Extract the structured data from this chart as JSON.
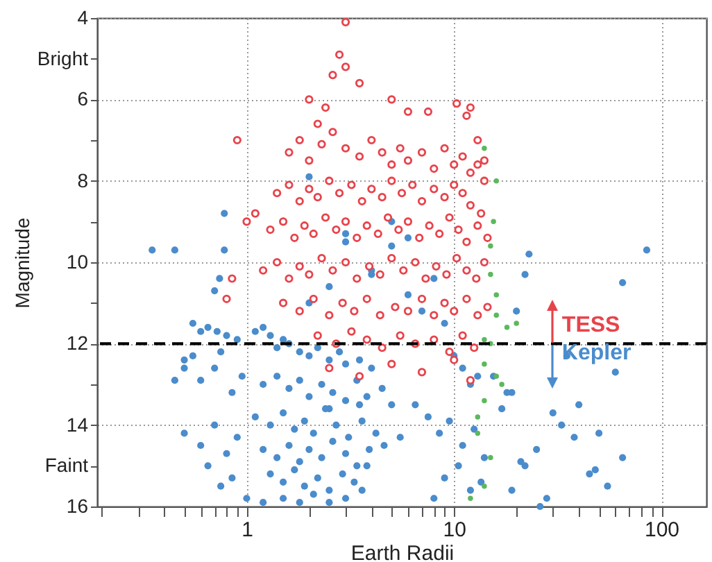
{
  "chart_data": {
    "type": "scatter",
    "xlabel": "Earth Radii",
    "ylabel": "Magnitude",
    "log": "x",
    "grid": true,
    "legend": "right",
    "marker": "circle",
    "xlim": [
      0.19,
      165
    ],
    "ylim": [
      16,
      4
    ],
    "xticks": [
      {
        "value": 0.2,
        "label": null
      },
      {
        "value": 0.3,
        "label": null
      },
      {
        "value": 0.4,
        "label": null
      },
      {
        "value": 0.5,
        "label": null
      },
      {
        "value": 0.6,
        "label": null
      },
      {
        "value": 0.7,
        "label": null
      },
      {
        "value": 0.8,
        "label": null
      },
      {
        "value": 0.9,
        "label": null
      },
      1,
      {
        "value": 2,
        "label": null
      },
      {
        "value": 3,
        "label": null
      },
      {
        "value": 4,
        "label": null
      },
      {
        "value": 5,
        "label": null
      },
      {
        "value": 6,
        "label": null
      },
      {
        "value": 7,
        "label": null
      },
      {
        "value": 8,
        "label": null
      },
      {
        "value": 9,
        "label": null
      },
      10,
      {
        "value": 20,
        "label": null
      },
      {
        "value": 30,
        "label": null
      },
      {
        "value": 40,
        "label": null
      },
      {
        "value": 50,
        "label": null
      },
      {
        "value": 60,
        "label": null
      },
      {
        "value": 70,
        "label": null
      },
      {
        "value": 80,
        "label": null
      },
      {
        "value": 90,
        "label": null
      },
      100
    ],
    "yticks": [
      4,
      {
        "value": 5,
        "label": "Bright"
      },
      6,
      {
        "value": 7,
        "label": null
      },
      8,
      {
        "value": 9,
        "label": null
      },
      10,
      {
        "value": 11,
        "label": null
      },
      12,
      {
        "value": 13,
        "label": null
      },
      14,
      {
        "value": 15,
        "label": "Faint"
      },
      16
    ],
    "ref_lines": [
      {
        "axis": "y",
        "value": 12,
        "line_style": "dashed",
        "color": "#000000"
      }
    ],
    "series": [
      {
        "name": "Kepler",
        "color": "#4a8ccc",
        "x": [
          0.35,
          0.45,
          0.78,
          0.78,
          0.7,
          0.74,
          0.55,
          0.6,
          0.65,
          0.72,
          0.8,
          0.9,
          0.5,
          0.45,
          0.5,
          0.55,
          0.6,
          0.7,
          0.75,
          0.85,
          0.95,
          0.5,
          0.6,
          0.7,
          0.8,
          0.9,
          0.65,
          0.75,
          0.85,
          1.0,
          1.1,
          1.2,
          1.3,
          1.4,
          1.5,
          1.6,
          1.8,
          2.0,
          2.2,
          2.5,
          2.8,
          3.0,
          3.5,
          4.0,
          1.2,
          1.4,
          1.6,
          1.8,
          2.0,
          2.3,
          2.6,
          3.0,
          3.4,
          3.8,
          4.5,
          5.0,
          1.1,
          1.3,
          1.5,
          1.7,
          1.9,
          2.1,
          2.4,
          2.7,
          3.1,
          3.6,
          4.2,
          1.2,
          1.4,
          1.6,
          1.8,
          2.0,
          2.3,
          2.6,
          3.0,
          3.4,
          3.9,
          4.6,
          5.5,
          1.3,
          1.5,
          1.7,
          1.9,
          2.2,
          2.5,
          2.9,
          3.3,
          3.8,
          1.2,
          1.5,
          1.8,
          2.1,
          2.5,
          3.0,
          3.6,
          2.0,
          2.5,
          3.0,
          4.0,
          5.0,
          6.0,
          7.0,
          8.0,
          9.0,
          10.0,
          11.0,
          12.0,
          13.0,
          8.5,
          9.5,
          11.0,
          12.5,
          14.0,
          9.0,
          10.5,
          12.0,
          8.0,
          13.5,
          6.5,
          7.5,
          15.5,
          17.0,
          19.0,
          2.0,
          3.0,
          4.0,
          5.0,
          6.0,
          2.5,
          3.5,
          23,
          22,
          85,
          65,
          20,
          35,
          60,
          40,
          30,
          50,
          55,
          65,
          25,
          45,
          22,
          28,
          33,
          19,
          21,
          26,
          38,
          48,
          18
        ],
        "values": [
          9.7,
          9.7,
          9.7,
          8.8,
          10.7,
          10.4,
          11.5,
          11.7,
          11.6,
          11.7,
          11.8,
          11.9,
          12.4,
          12.9,
          12.6,
          12.3,
          12.9,
          12.6,
          12.2,
          13.2,
          12.8,
          14.2,
          14.5,
          14.0,
          14.7,
          14.3,
          15.0,
          15.5,
          15.3,
          15.8,
          11.7,
          11.6,
          11.8,
          12.1,
          11.9,
          12.0,
          12.2,
          12.3,
          12.1,
          12.4,
          12.2,
          12.5,
          12.4,
          12.6,
          13.0,
          12.8,
          13.1,
          12.9,
          13.3,
          13.0,
          13.2,
          13.4,
          12.9,
          13.3,
          13.1,
          13.5,
          13.8,
          14.0,
          13.7,
          14.1,
          13.9,
          14.2,
          13.6,
          14.0,
          14.3,
          13.9,
          14.2,
          14.6,
          14.8,
          14.5,
          14.9,
          14.6,
          14.8,
          14.4,
          14.7,
          15.0,
          14.6,
          14.5,
          14.3,
          15.2,
          15.4,
          15.1,
          15.5,
          15.3,
          15.6,
          15.2,
          15.4,
          15.0,
          15.9,
          15.8,
          15.9,
          15.7,
          15.9,
          15.8,
          15.6,
          11.0,
          10.6,
          9.5,
          10.2,
          9.6,
          10.8,
          11.2,
          10.4,
          11.5,
          12.3,
          12.6,
          13.0,
          12.8,
          14.2,
          13.9,
          14.5,
          14.1,
          14.8,
          15.3,
          15.0,
          15.6,
          15.8,
          15.4,
          13.5,
          13.8,
          12.8,
          13.6,
          13.2,
          7.9,
          9.3,
          10.3,
          9.0,
          9.4,
          13.6,
          13.5,
          9.8,
          10.3,
          9.7,
          10.5,
          11.2,
          12.3,
          12.7,
          13.5,
          13.7,
          14.2,
          15.5,
          14.8,
          14.6,
          15.2,
          15.0,
          15.8,
          14.0,
          15.6,
          14.9,
          16.0,
          14.3,
          15.1,
          13.2
        ]
      },
      {
        "color": "#5cb85c",
        "x": [
          14,
          16,
          15,
          16,
          18,
          20,
          15,
          14,
          16,
          14,
          13,
          15,
          14,
          12,
          17,
          15.5,
          15,
          16,
          14,
          13
        ],
        "values": [
          7.2,
          8.0,
          10.3,
          11.3,
          11.6,
          11.5,
          12.0,
          12.5,
          12.8,
          13.4,
          14.2,
          14.8,
          15.5,
          15.8,
          13.0,
          9.0,
          9.6,
          10.8,
          11.9,
          13.8
        ]
      },
      {
        "name": "TESS",
        "color": "#e8434b",
        "x": [
          3.0,
          2.8,
          3.0,
          3.5,
          2.6,
          0.9,
          1.1,
          0.85,
          0.8,
          1.0,
          12,
          10.3,
          11.5,
          13,
          14,
          5.0,
          6.0,
          7.5,
          2.0,
          2.2,
          2.4,
          1.6,
          1.8,
          2.0,
          2.3,
          2.6,
          3.0,
          3.5,
          4.0,
          4.5,
          5.0,
          5.5,
          6.0,
          7.0,
          8.0,
          9.0,
          10.0,
          11.0,
          12.0,
          13.0,
          14.0,
          1.4,
          1.6,
          1.8,
          2.0,
          2.2,
          2.5,
          2.8,
          3.2,
          3.6,
          4.0,
          4.5,
          5.0,
          5.6,
          6.3,
          7.0,
          8.0,
          9.0,
          10.0,
          11.0,
          12.0,
          13.5,
          1.3,
          1.5,
          1.7,
          1.9,
          2.1,
          2.4,
          2.7,
          3.0,
          3.4,
          3.8,
          4.3,
          4.8,
          5.4,
          6.0,
          6.8,
          7.6,
          8.5,
          9.5,
          10.5,
          11.5,
          13.0,
          14.5,
          1.2,
          1.4,
          1.6,
          1.8,
          2.0,
          2.3,
          2.6,
          3.0,
          3.4,
          3.9,
          4.4,
          5.0,
          5.7,
          6.5,
          7.3,
          8.2,
          9.2,
          10.3,
          11.5,
          12.8,
          14.0,
          1.5,
          1.8,
          2.1,
          2.5,
          2.9,
          3.3,
          3.8,
          4.4,
          5.2,
          6.0,
          7.0,
          8.0,
          9.0,
          10.0,
          11.5,
          13.0,
          14.5,
          2.2,
          2.7,
          3.2,
          3.8,
          4.5,
          5.5,
          6.5,
          8.0,
          9.5,
          11.0,
          12.5,
          2.5,
          3.5,
          5.0,
          7.0,
          10.0,
          12.0
        ],
        "values": [
          4.1,
          4.9,
          5.2,
          5.6,
          5.4,
          7.0,
          8.8,
          10.4,
          10.9,
          9.0,
          6.2,
          6.1,
          6.4,
          7.0,
          7.5,
          6.0,
          6.3,
          6.3,
          6.0,
          6.6,
          6.2,
          7.3,
          7.0,
          7.5,
          7.1,
          6.8,
          7.2,
          7.4,
          7.0,
          7.3,
          7.6,
          7.2,
          7.5,
          7.3,
          7.7,
          7.2,
          7.6,
          7.4,
          7.8,
          7.6,
          8.0,
          8.3,
          8.1,
          8.5,
          8.2,
          8.4,
          8.0,
          8.3,
          8.1,
          8.5,
          8.2,
          8.4,
          8.0,
          8.3,
          8.1,
          8.5,
          8.2,
          8.4,
          8.1,
          8.3,
          8.6,
          8.8,
          9.2,
          9.0,
          9.4,
          9.1,
          9.3,
          8.9,
          9.2,
          9.0,
          9.4,
          9.1,
          9.3,
          8.9,
          9.2,
          9.0,
          9.4,
          9.1,
          9.3,
          8.9,
          9.2,
          9.5,
          9.1,
          9.4,
          10.2,
          10.0,
          10.4,
          10.1,
          10.3,
          9.9,
          10.2,
          10.0,
          10.4,
          10.1,
          10.3,
          9.9,
          10.2,
          10.0,
          10.4,
          10.1,
          10.3,
          9.9,
          10.2,
          10.4,
          10.0,
          11.0,
          11.2,
          10.9,
          11.3,
          11.0,
          11.2,
          10.9,
          11.3,
          11.1,
          11.2,
          10.9,
          11.3,
          11.0,
          11.2,
          10.9,
          11.3,
          11.1,
          11.8,
          12.0,
          11.7,
          11.9,
          12.1,
          11.8,
          12.0,
          11.9,
          12.2,
          11.8,
          12.1,
          12.6,
          12.8,
          12.5,
          12.7,
          12.4,
          12.9
        ]
      }
    ]
  }
}
